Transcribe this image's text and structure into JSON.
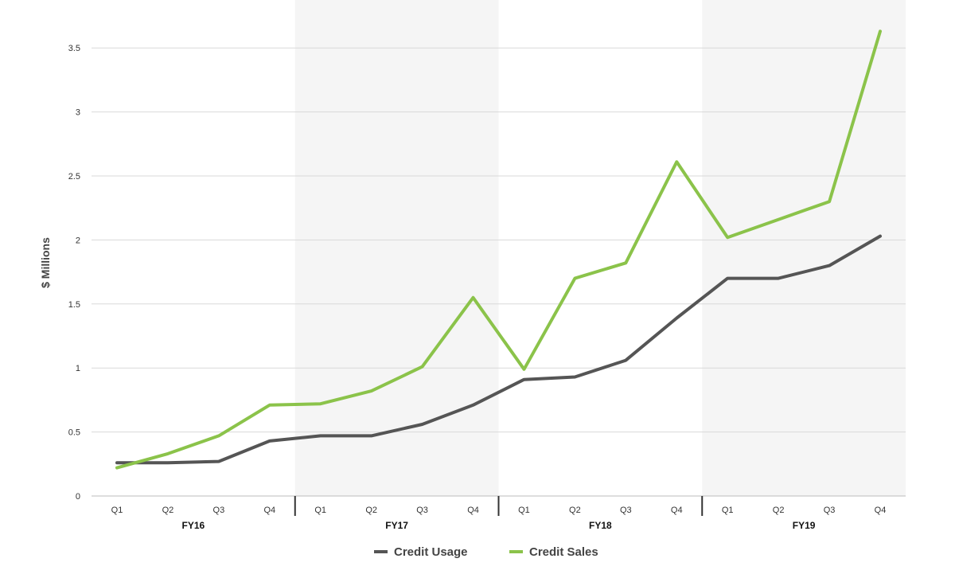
{
  "chart_data": {
    "type": "line",
    "ylabel": "$ Millions",
    "ylim": [
      0,
      3.75
    ],
    "yticks": [
      "0",
      "0.5",
      "1",
      "1.5",
      "2",
      "2.5",
      "3",
      "3.5"
    ],
    "yticks_values": [
      0,
      0.5,
      1,
      1.5,
      2,
      2.5,
      3,
      3.5
    ],
    "grid": "horizontal",
    "legend_position": "bottom",
    "x": [
      "Q1",
      "Q2",
      "Q3",
      "Q4",
      "Q1",
      "Q2",
      "Q3",
      "Q4",
      "Q1",
      "Q2",
      "Q3",
      "Q4",
      "Q1",
      "Q2",
      "Q3",
      "Q4"
    ],
    "groups": [
      {
        "label": "FY16",
        "shaded": false
      },
      {
        "label": "FY17",
        "shaded": true
      },
      {
        "label": "FY18",
        "shaded": false
      },
      {
        "label": "FY19",
        "shaded": true
      }
    ],
    "series": [
      {
        "name": "Credit Usage",
        "color": "#555555",
        "values": [
          0.26,
          0.26,
          0.27,
          0.43,
          0.47,
          0.47,
          0.56,
          0.71,
          0.91,
          0.93,
          1.06,
          1.39,
          1.7,
          1.7,
          1.8,
          2.03
        ]
      },
      {
        "name": "Credit Sales",
        "color": "#8bc34a",
        "values": [
          0.22,
          0.33,
          0.47,
          0.71,
          0.72,
          0.82,
          1.01,
          1.55,
          0.99,
          1.7,
          1.82,
          2.61,
          2.02,
          2.16,
          2.3,
          3.63
        ]
      }
    ]
  }
}
